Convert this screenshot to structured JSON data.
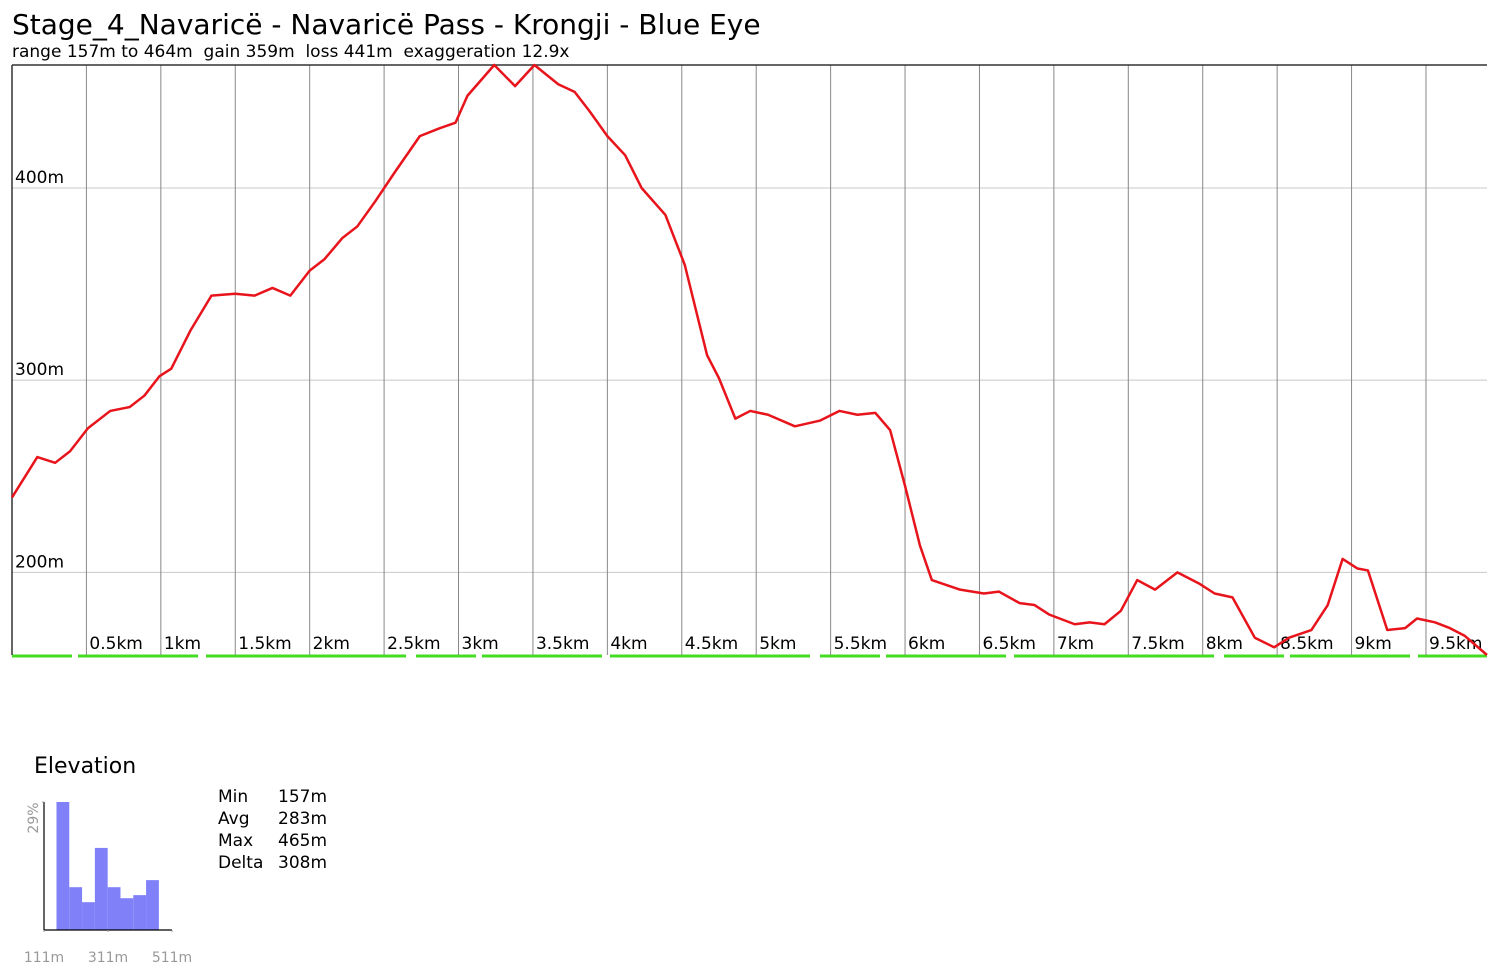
{
  "chart_data": [
    {
      "type": "line",
      "title": "Stage_4_Navaricë - Navaricë Pass - Krongji - Blue Eye",
      "subtitle": "range 157m to 464m  gain 359m  loss 441m  exaggeration 12.9x",
      "x": [
        0,
        0.17,
        0.29,
        0.39,
        0.51,
        0.66,
        0.79,
        0.89,
        0.99,
        1.07,
        1.2,
        1.34,
        1.5,
        1.63,
        1.75,
        1.87,
        2.0,
        2.1,
        2.22,
        2.32,
        2.44,
        2.57,
        2.74,
        2.87,
        2.98,
        3.06,
        3.24,
        3.38,
        3.51,
        3.67,
        3.78,
        3.88,
        4.0,
        4.12,
        4.23,
        4.39,
        4.52,
        4.67,
        4.75,
        4.86,
        4.96,
        5.08,
        5.26,
        5.43,
        5.56,
        5.68,
        5.8,
        5.9,
        6.0,
        6.1,
        6.18,
        6.37,
        6.53,
        6.63,
        6.77,
        6.87,
        6.97,
        7.14,
        7.24,
        7.34,
        7.45,
        7.56,
        7.68,
        7.83,
        7.98,
        8.08,
        8.2,
        8.35,
        8.48,
        8.58,
        8.73,
        8.84,
        8.94,
        9.04,
        9.11,
        9.24,
        9.36,
        9.44,
        9.56,
        9.66,
        9.76,
        9.91
      ],
      "series": [
        {
          "name": "Elevation",
          "color": "#e8141c",
          "values": [
            239,
            260,
            257,
            263,
            275,
            284,
            286,
            292,
            302,
            306,
            326,
            344,
            345,
            344,
            348,
            344,
            357,
            363,
            374,
            380,
            393,
            408,
            427,
            431,
            434,
            448,
            464,
            453,
            464,
            454,
            450,
            440,
            427,
            417,
            400,
            386,
            360,
            313,
            301,
            280,
            284,
            282,
            276,
            279,
            284,
            282,
            283,
            274,
            245,
            214,
            196,
            191,
            189,
            190,
            184,
            183,
            178,
            173,
            174,
            173,
            180,
            196,
            191,
            200,
            194,
            189,
            187,
            166,
            161,
            166,
            170,
            183,
            207,
            202,
            201,
            170,
            171,
            176,
            174,
            171,
            167,
            157
          ]
        }
      ],
      "xlim": [
        0,
        9.91
      ],
      "xticks": [
        {
          "value": 0.5,
          "label": "0.5km"
        },
        {
          "value": 1,
          "label": "1km"
        },
        {
          "value": 1.5,
          "label": "1.5km"
        },
        {
          "value": 2,
          "label": "2km"
        },
        {
          "value": 2.5,
          "label": "2.5km"
        },
        {
          "value": 3,
          "label": "3km"
        },
        {
          "value": 3.5,
          "label": "3.5km"
        },
        {
          "value": 4,
          "label": "4km"
        },
        {
          "value": 4.5,
          "label": "4.5km"
        },
        {
          "value": 5,
          "label": "5km"
        },
        {
          "value": 5.5,
          "label": "5.5km"
        },
        {
          "value": 6,
          "label": "6km"
        },
        {
          "value": 6.5,
          "label": "6.5km"
        },
        {
          "value": 7,
          "label": "7km"
        },
        {
          "value": 7.5,
          "label": "7.5km"
        },
        {
          "value": 8,
          "label": "8km"
        },
        {
          "value": 8.5,
          "label": "8.5km"
        },
        {
          "value": 9,
          "label": "9km"
        },
        {
          "value": 9.5,
          "label": "9.5km"
        }
      ],
      "ylim": [
        157,
        464
      ],
      "yticks": [
        {
          "value": 200,
          "label": "200m"
        },
        {
          "value": 300,
          "label": "300m"
        },
        {
          "value": 400,
          "label": "400m"
        }
      ],
      "grid": true
    },
    {
      "type": "histogram",
      "title": "Elevation",
      "bins": [
        150,
        190,
        230,
        270,
        310,
        350,
        390,
        430,
        470
      ],
      "values": [
        29,
        9.7,
        6.3,
        18.6,
        9.7,
        7.2,
        7.9,
        11.3
      ],
      "color": "#8080f8",
      "xlim": [
        111,
        511
      ],
      "xticks": [
        {
          "value": 111,
          "label": "111m"
        },
        {
          "value": 311,
          "label": "311m"
        },
        {
          "value": 511,
          "label": "511m"
        }
      ],
      "ylim": [
        0,
        29
      ],
      "yticks": [
        {
          "value": 29,
          "label": "29%"
        }
      ]
    }
  ],
  "stats": [
    {
      "label": "Min",
      "value": "157m"
    },
    {
      "label": "Avg",
      "value": "283m"
    },
    {
      "label": "Max",
      "value": "465m"
    },
    {
      "label": "Delta",
      "value": "308m"
    }
  ]
}
